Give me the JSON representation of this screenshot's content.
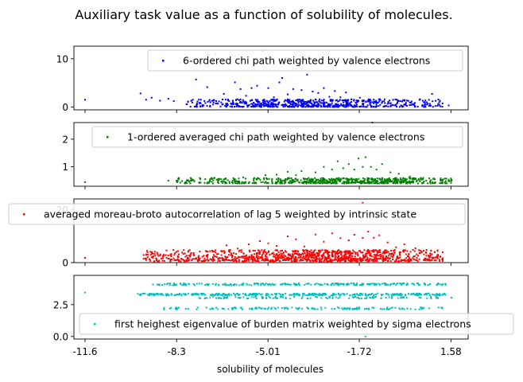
{
  "chart_data": {
    "type": "scatter",
    "title": "Auxiliary task value as a function of solubility of molecules.",
    "xlabel": "solubility of molecules",
    "xlim": [
      -12.0,
      2.2
    ],
    "x_ticks": [
      -11.6,
      -8.3,
      -5.01,
      -1.72,
      1.58
    ],
    "x_tick_labels": [
      "-11.6",
      "-8.3",
      "-5.01",
      "-1.72",
      "1.58"
    ],
    "grid": false,
    "panels": [
      {
        "series_name": "6-ordered chi path weighted by valence electrons",
        "color": "#0000ff",
        "ylim": [
          -0.6,
          12.6
        ],
        "y_ticks": [
          0,
          10
        ],
        "y_tick_labels": [
          "0",
          "10"
        ],
        "legend_position": "upper-right",
        "points": [
          [
            -11.6,
            1.5
          ],
          [
            -9.6,
            2.8
          ],
          [
            -9.4,
            1.5
          ],
          [
            -9.2,
            1.9
          ],
          [
            -8.9,
            1.3
          ],
          [
            -8.6,
            1.7
          ],
          [
            -8.4,
            1.2
          ],
          [
            -7.6,
            5.7
          ],
          [
            -7.2,
            4.1
          ],
          [
            -6.9,
            10.9
          ],
          [
            -6.6,
            2.7
          ],
          [
            -6.2,
            5.1
          ],
          [
            -6.0,
            3.7
          ],
          [
            -5.8,
            2.3
          ],
          [
            -5.6,
            3.9
          ],
          [
            -5.4,
            4.4
          ],
          [
            -5.2,
            11.6
          ],
          [
            -5.0,
            3.9
          ],
          [
            -4.8,
            2.0
          ],
          [
            -4.6,
            5.1
          ],
          [
            -4.5,
            6.0
          ],
          [
            -4.3,
            2.6
          ],
          [
            -4.1,
            3.7
          ],
          [
            -3.8,
            3.5
          ],
          [
            -3.6,
            6.7
          ],
          [
            -3.4,
            3.2
          ],
          [
            -3.2,
            2.9
          ],
          [
            -3.0,
            3.9
          ],
          [
            -2.8,
            2.1
          ],
          [
            -2.6,
            3.3
          ],
          [
            -2.4,
            2.0
          ],
          [
            -2.2,
            3.0
          ],
          [
            -2.0,
            1.6
          ],
          [
            -1.7,
            1.9
          ],
          [
            -1.4,
            1.2
          ],
          [
            -1.1,
            1.0
          ],
          [
            -0.8,
            0.8
          ],
          [
            0.2,
            0.5
          ],
          [
            0.9,
            2.7
          ],
          [
            1.5,
            0.3
          ]
        ],
        "band": {
          "x_range": [
            -8.0,
            1.3
          ],
          "y_min": 0.0,
          "y_max": 1.6,
          "peak_x": -3.5,
          "count": 650
        }
      },
      {
        "series_name": "1-ordered averaged chi path weighted by valence electrons",
        "color": "#008000",
        "ylim": [
          0.3,
          2.6
        ],
        "y_ticks": [
          1,
          2
        ],
        "y_tick_labels": [
          "1",
          "2"
        ],
        "legend_position": "upper-right",
        "points": [
          [
            -11.6,
            0.45
          ],
          [
            -8.6,
            0.5
          ],
          [
            -8.3,
            0.5
          ],
          [
            -7.8,
            0.5
          ],
          [
            -6.7,
            0.55
          ],
          [
            -5.9,
            0.62
          ],
          [
            -5.5,
            0.6
          ],
          [
            -5.1,
            0.7
          ],
          [
            -4.7,
            0.72
          ],
          [
            -4.3,
            0.82
          ],
          [
            -4.0,
            0.7
          ],
          [
            -3.8,
            0.85
          ],
          [
            -3.3,
            0.8
          ],
          [
            -3.0,
            1.0
          ],
          [
            -2.7,
            0.9
          ],
          [
            -2.5,
            1.2
          ],
          [
            -2.3,
            0.95
          ],
          [
            -2.1,
            1.1
          ],
          [
            -1.9,
            0.9
          ],
          [
            -1.75,
            1.3
          ],
          [
            -1.6,
            1.0
          ],
          [
            -1.5,
            1.35
          ],
          [
            -1.3,
            1.0
          ],
          [
            -1.25,
            2.6
          ],
          [
            -1.1,
            0.9
          ],
          [
            -0.9,
            1.1
          ],
          [
            -0.6,
            0.8
          ],
          [
            -0.3,
            0.75
          ],
          [
            0.1,
            0.65
          ],
          [
            0.5,
            0.6
          ],
          [
            1.0,
            0.55
          ],
          [
            1.6,
            0.5
          ]
        ],
        "band": {
          "x_range": [
            -8.3,
            1.6
          ],
          "y_min": 0.4,
          "y_max": 0.6,
          "peak_x": -2.0,
          "count": 650
        }
      },
      {
        "series_name": "averaged moreau-broto autocorrelation of lag 5 weighted by intrinsic state",
        "color": "#ff0000",
        "ylim": [
          0,
          24
        ],
        "y_ticks": [
          0,
          20
        ],
        "y_tick_labels": [
          "0",
          "20"
        ],
        "legend_position": "upper-center",
        "points": [
          [
            -11.6,
            1.8
          ],
          [
            -9.4,
            1.6
          ],
          [
            -8.8,
            1.6
          ],
          [
            -8.5,
            2.5
          ],
          [
            -8.1,
            3.8
          ],
          [
            -7.6,
            1.5
          ],
          [
            -7.1,
            4.3
          ],
          [
            -6.8,
            3.3
          ],
          [
            -6.5,
            6.5
          ],
          [
            -6.1,
            5.3
          ],
          [
            -5.7,
            6.9
          ],
          [
            -5.3,
            8.1
          ],
          [
            -5.0,
            7.3
          ],
          [
            -4.7,
            6.3
          ],
          [
            -4.3,
            9.9
          ],
          [
            -4.0,
            8.8
          ],
          [
            -3.7,
            6.1
          ],
          [
            -3.3,
            10.6
          ],
          [
            -3.0,
            7.9
          ],
          [
            -2.7,
            11.0
          ],
          [
            -2.4,
            9.2
          ],
          [
            -2.1,
            8.4
          ],
          [
            -1.9,
            10.5
          ],
          [
            -1.6,
            9.3
          ],
          [
            -1.4,
            11.7
          ],
          [
            -1.2,
            9.4
          ],
          [
            -1.0,
            10.3
          ],
          [
            -0.7,
            7.6
          ],
          [
            -0.4,
            5.8
          ],
          [
            -0.1,
            6.9
          ],
          [
            0.3,
            5.4
          ],
          [
            0.7,
            4.8
          ],
          [
            1.1,
            4.4
          ],
          [
            -1.6,
            22.5
          ],
          [
            -1.3,
            22.0
          ]
        ],
        "band": {
          "x_range": [
            -9.5,
            1.3
          ],
          "y_min": 0.5,
          "y_max": 4.8,
          "peak_x": -3.0,
          "count": 1100
        }
      },
      {
        "series_name": "first heighest eigenvalue of burden matrix weighted by sigma electrons",
        "color": "#00bfbf",
        "ylim": [
          -0.2,
          4.8
        ],
        "y_ticks": [
          0,
          2.5
        ],
        "y_tick_labels": [
          "0.0",
          "2.5"
        ],
        "legend_position": "lower-right",
        "points": [
          [
            -11.6,
            3.45
          ],
          [
            1.6,
            3.05
          ],
          [
            -1.5,
            0.0
          ]
        ],
        "levels": [
          {
            "y": 4.1,
            "x_range": [
              -9.2,
              1.4
            ],
            "count": 240
          },
          {
            "y": 3.3,
            "x_range": [
              -9.7,
              1.4
            ],
            "count": 360
          },
          {
            "y": 3.05,
            "x_range": [
              -7.5,
              1.2
            ],
            "count": 110
          },
          {
            "y": 2.2,
            "x_range": [
              -8.8,
              1.3
            ],
            "count": 150
          }
        ]
      }
    ]
  }
}
